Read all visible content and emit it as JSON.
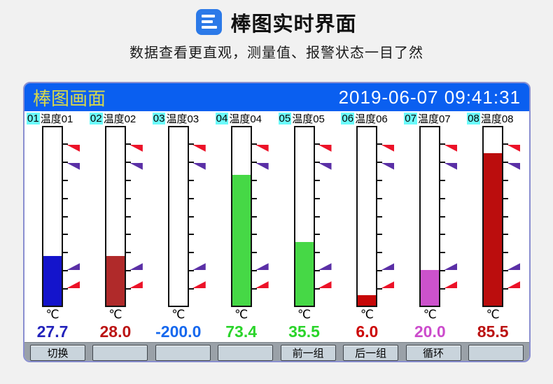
{
  "page": {
    "title": "棒图实时界面",
    "subtitle": "数据查看更直观，测量值、报警状态一目了然",
    "brand_icon": "three-lines-icon",
    "brand_color": "#2b79e8"
  },
  "screen": {
    "header": {
      "title": "棒图画面",
      "datetime": "2019-06-07 09:41:31",
      "bg_color": "#0a5ff0",
      "title_color": "#d8d84a",
      "datetime_color": "#ffffff"
    },
    "buttons": [
      {
        "label": "切换"
      },
      {
        "label": ""
      },
      {
        "label": ""
      },
      {
        "label": ""
      },
      {
        "label": "前一组"
      },
      {
        "label": "后一组"
      },
      {
        "label": "循环"
      },
      {
        "label": ""
      }
    ]
  },
  "chart_data": {
    "type": "bar",
    "title": "棒图画面",
    "unit": "℃",
    "scale": {
      "min": 0,
      "max": 100,
      "ticks_percent": [
        10,
        20,
        30,
        40,
        50,
        60,
        70,
        80,
        90
      ]
    },
    "alarm_flags": [
      {
        "direction": "high",
        "percent": 90,
        "color": "#ec1228",
        "name": "high-high-alarm"
      },
      {
        "direction": "high",
        "percent": 80,
        "color": "#5a2fa6",
        "name": "high-alarm"
      },
      {
        "direction": "low",
        "percent": 20,
        "color": "#5a2fa6",
        "name": "low-alarm"
      },
      {
        "direction": "low",
        "percent": 10,
        "color": "#ec1228",
        "name": "low-low-alarm"
      }
    ],
    "channels": [
      {
        "id": "01",
        "name": "温度01",
        "value": "27.7",
        "fill_percent": 27.7,
        "bar_color": "#1414cc",
        "value_color": "#2323bb"
      },
      {
        "id": "02",
        "name": "温度02",
        "value": "28.0",
        "fill_percent": 28.0,
        "bar_color": "#b02a2a",
        "value_color": "#bb1414"
      },
      {
        "id": "03",
        "name": "温度03",
        "value": "-200.0",
        "fill_percent": 0,
        "bar_color": "#ffffff",
        "value_color": "#1668ee"
      },
      {
        "id": "04",
        "name": "温度04",
        "value": "73.4",
        "fill_percent": 73.4,
        "bar_color": "#46d846",
        "value_color": "#2ad42a"
      },
      {
        "id": "05",
        "name": "温度05",
        "value": "35.5",
        "fill_percent": 35.5,
        "bar_color": "#46d846",
        "value_color": "#2ad42a"
      },
      {
        "id": "06",
        "name": "温度06",
        "value": "6.0",
        "fill_percent": 6.0,
        "bar_color": "#c70808",
        "value_color": "#cc0505"
      },
      {
        "id": "07",
        "name": "温度07",
        "value": "20.0",
        "fill_percent": 20.0,
        "bar_color": "#cc52cc",
        "value_color": "#cc4bcc"
      },
      {
        "id": "08",
        "name": "温度08",
        "value": "85.5",
        "fill_percent": 85.5,
        "bar_color": "#bb0d0d",
        "value_color": "#bb1212"
      }
    ]
  }
}
